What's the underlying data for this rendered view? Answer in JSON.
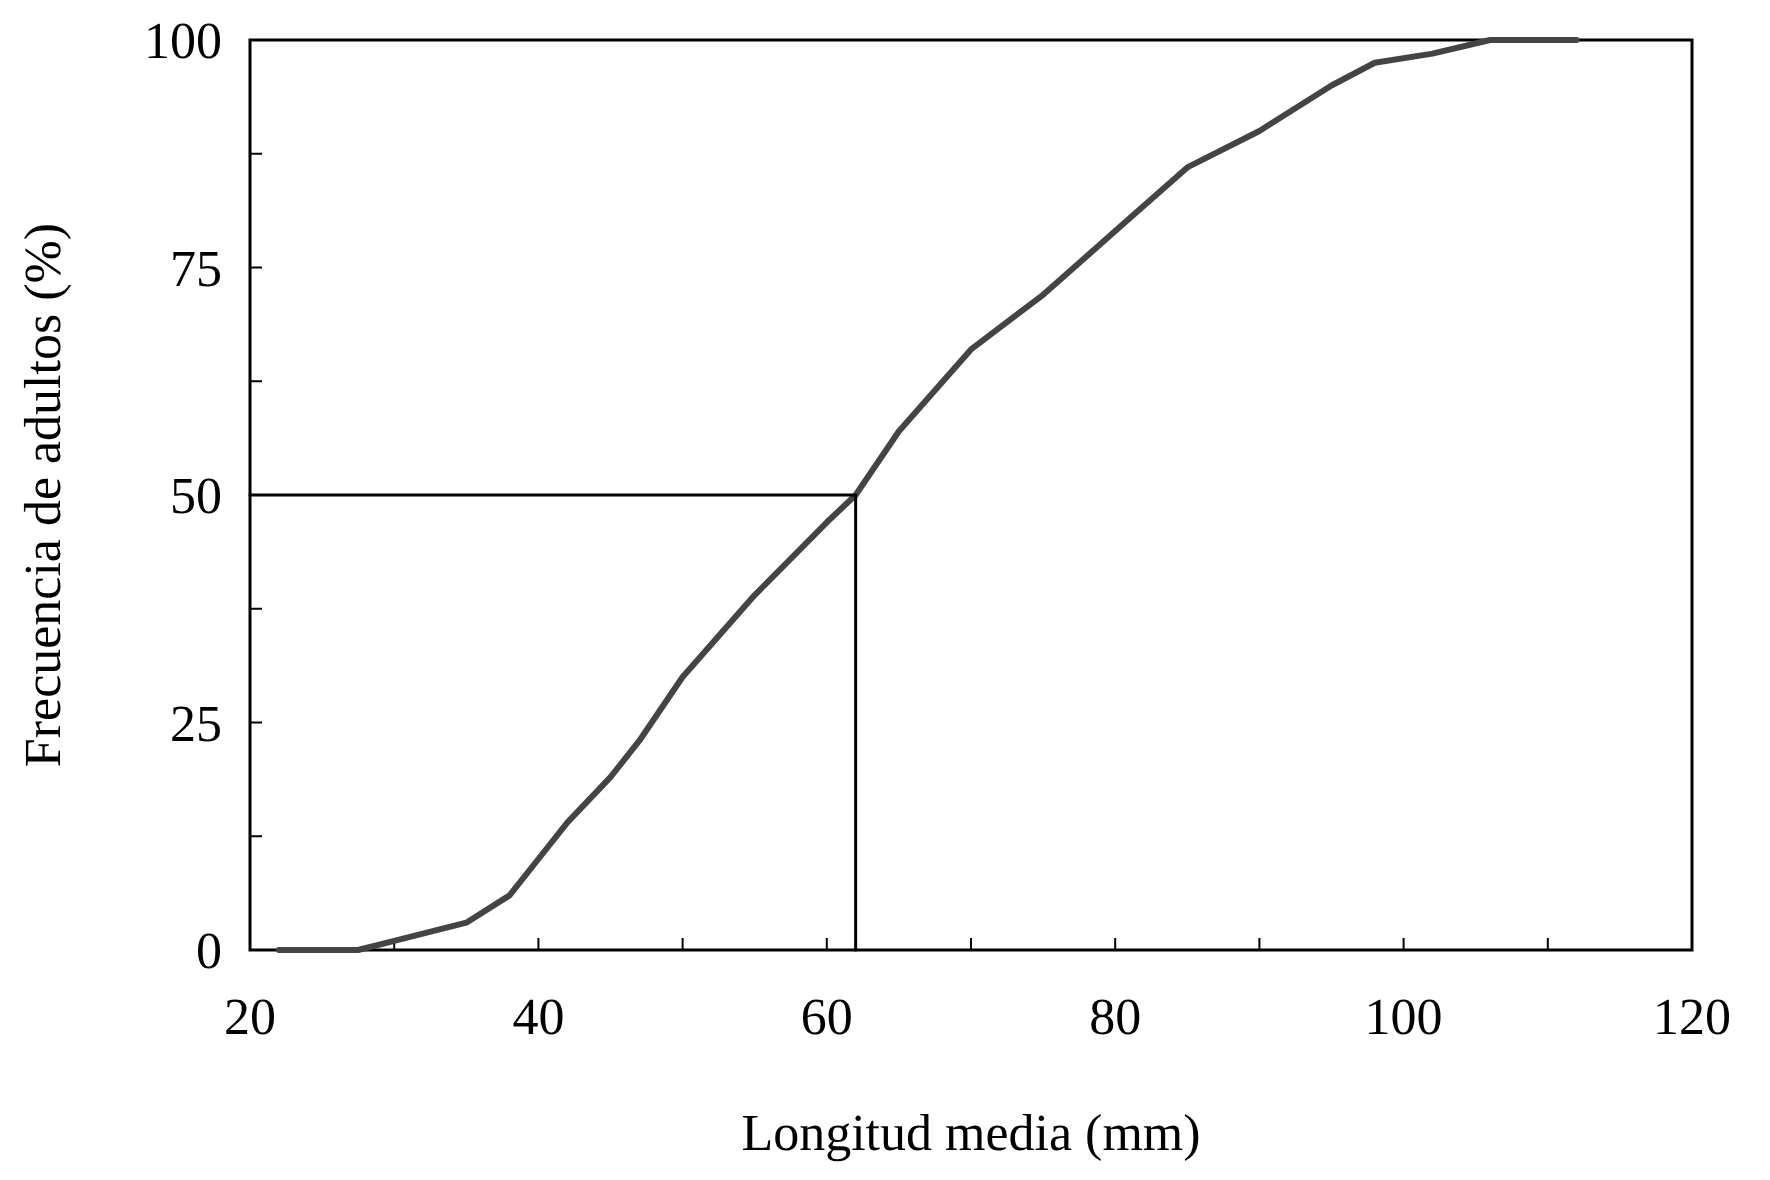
{
  "chart_data": {
    "type": "line",
    "xlabel": "Longitud media (mm)",
    "ylabel": "Frecuencia de adultos (%)",
    "xlim": [
      20,
      120
    ],
    "ylim": [
      0,
      100
    ],
    "xticks": [
      20,
      {
        "value": 30,
        "label": null
      },
      40,
      {
        "value": 50,
        "label": null
      },
      60,
      {
        "value": 70,
        "label": null
      },
      80,
      {
        "value": 90,
        "label": null
      },
      100,
      {
        "value": 110,
        "label": null
      },
      120
    ],
    "yticks": [
      0,
      {
        "value": 12.5,
        "label": null
      },
      25,
      {
        "value": 37.5,
        "label": null
      },
      50,
      {
        "value": 62.5,
        "label": null
      },
      75,
      {
        "value": 87.5,
        "label": null
      },
      100
    ],
    "grid": false,
    "line_style": "solid",
    "series": [
      {
        "color": "#444444",
        "x": [
          22,
          25.5,
          27.5,
          30,
          35,
          38,
          40,
          42,
          45,
          47,
          50,
          55,
          60,
          62,
          65,
          70,
          75,
          80,
          85,
          90,
          95,
          98,
          102,
          106,
          112
        ],
        "values": [
          0,
          0,
          0,
          1,
          3,
          6,
          10,
          14,
          19,
          23,
          30,
          39,
          47,
          50,
          57,
          66,
          72,
          79,
          86,
          90,
          95,
          97.5,
          98.5,
          100,
          100
        ]
      },
      {
        "type": "line",
        "color": "#000000",
        "x": [
          20,
          62,
          62
        ],
        "values": [
          50,
          50,
          0
        ]
      }
    ]
  }
}
